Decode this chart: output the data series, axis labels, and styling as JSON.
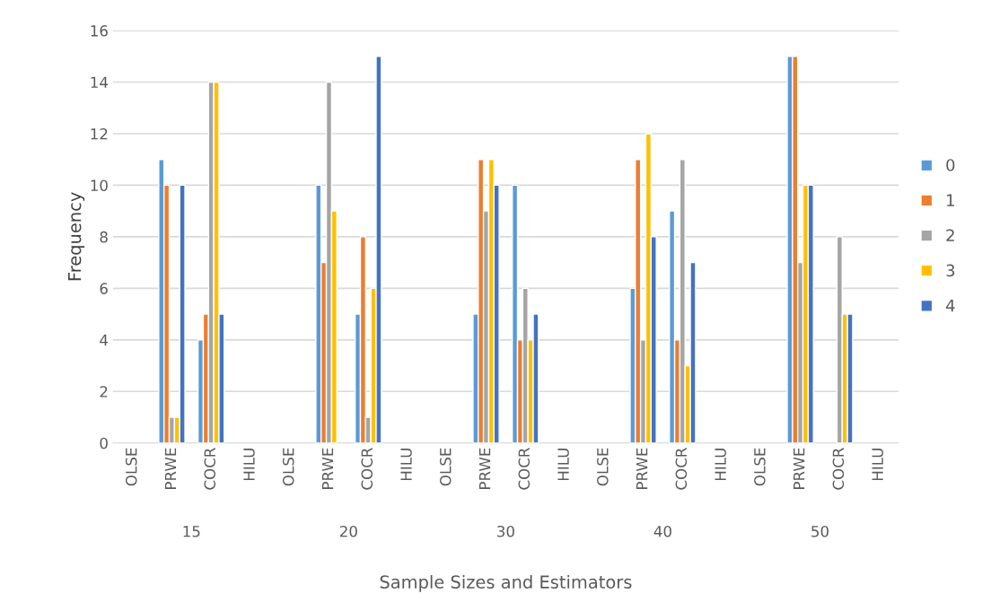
{
  "chart_data": {
    "type": "bar",
    "xlabel": "Sample Sizes and Estimators",
    "ylabel": "Frequency",
    "categories": [
      "OLSE",
      "PRWE",
      "COCR",
      "HILU",
      "OLSE",
      "PRWE",
      "COCR",
      "HILU",
      "OLSE",
      "PRWE",
      "COCR",
      "HILU",
      "OLSE",
      "PRWE",
      "COCR",
      "HILU",
      "OLSE",
      "PRWE",
      "COCR",
      "HILU"
    ],
    "annotations": [
      "15",
      "20",
      "30",
      "40",
      "50"
    ],
    "series": [
      {
        "name": "0",
        "color": "#5b9bd5",
        "values": [
          null,
          11,
          4,
          null,
          null,
          10,
          5,
          null,
          null,
          5,
          10,
          null,
          null,
          6,
          9,
          null,
          null,
          15,
          null,
          null
        ]
      },
      {
        "name": "1",
        "color": "#ed7d31",
        "values": [
          null,
          10,
          5,
          null,
          null,
          7,
          8,
          null,
          null,
          11,
          4,
          null,
          null,
          11,
          4,
          null,
          null,
          15,
          null,
          null
        ]
      },
      {
        "name": "2",
        "color": "#a5a5a5",
        "values": [
          null,
          1,
          14,
          null,
          null,
          14,
          1,
          null,
          null,
          9,
          6,
          null,
          null,
          4,
          11,
          null,
          null,
          7,
          8,
          null
        ]
      },
      {
        "name": "3",
        "color": "#ffc000",
        "values": [
          null,
          1,
          14,
          null,
          null,
          9,
          6,
          null,
          null,
          11,
          4,
          null,
          null,
          12,
          3,
          null,
          null,
          10,
          5,
          null
        ]
      },
      {
        "name": "4",
        "color": "#4472c4",
        "values": [
          null,
          10,
          5,
          null,
          null,
          null,
          15,
          null,
          null,
          10,
          5,
          null,
          null,
          8,
          7,
          null,
          null,
          10,
          5,
          null
        ]
      }
    ],
    "ylim": [
      0,
      16
    ],
    "yticks": [
      0,
      2,
      4,
      6,
      8,
      10,
      12,
      14,
      16
    ],
    "grid": "y",
    "legend": "right"
  }
}
